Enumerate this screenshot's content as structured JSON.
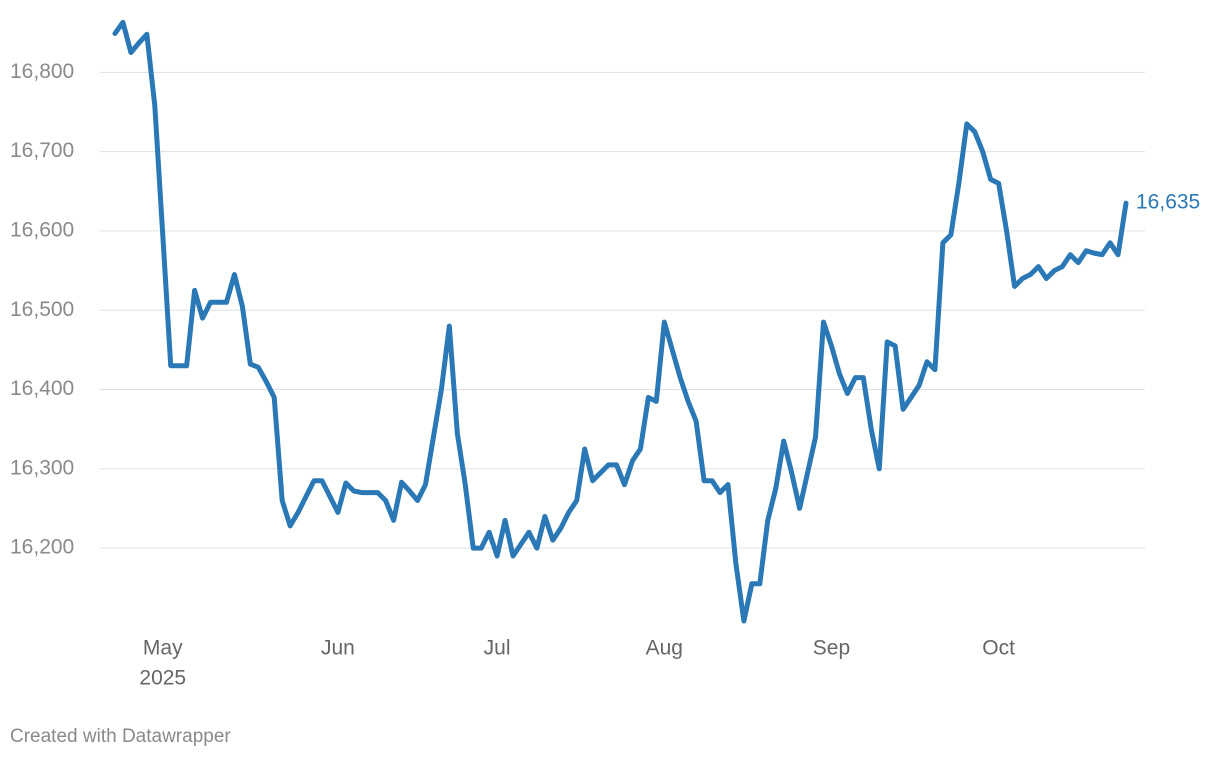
{
  "chart_data": {
    "type": "line",
    "categories": [
      null,
      null,
      null,
      null,
      null,
      null,
      "May",
      null,
      null,
      null,
      null,
      null,
      null,
      null,
      null,
      null,
      null,
      null,
      null,
      null,
      null,
      null,
      null,
      null,
      null,
      null,
      null,
      null,
      "Jun",
      null,
      null,
      null,
      null,
      null,
      null,
      null,
      null,
      null,
      null,
      null,
      null,
      null,
      null,
      null,
      null,
      null,
      null,
      null,
      "Jul",
      null,
      null,
      null,
      null,
      null,
      null,
      null,
      null,
      null,
      null,
      null,
      null,
      null,
      null,
      null,
      null,
      null,
      null,
      null,
      null,
      "Aug",
      null,
      null,
      null,
      null,
      null,
      null,
      null,
      null,
      null,
      null,
      null,
      null,
      null,
      null,
      null,
      null,
      null,
      null,
      null,
      null,
      "Sep",
      null,
      null,
      null,
      null,
      null,
      null,
      null,
      null,
      null,
      null,
      null,
      null,
      null,
      null,
      null,
      null,
      null,
      null,
      null,
      null,
      "Oct",
      null,
      null,
      null,
      null,
      null,
      null,
      null,
      null,
      null,
      null,
      null,
      null,
      null,
      null,
      null,
      null
    ],
    "year_label": "2025",
    "series": [
      {
        "color": "#2a78b5",
        "values": [
          16849,
          16863,
          16825,
          16837,
          16848,
          16758,
          16595,
          16430,
          16430,
          16430,
          16525,
          16490,
          16510,
          16510,
          16510,
          16545,
          16505,
          16432,
          16428,
          16410,
          16390,
          16260,
          16228,
          16245,
          16265,
          16285,
          16285,
          16265,
          16245,
          16282,
          16272,
          16270,
          16270,
          16270,
          16260,
          16235,
          16283,
          16272,
          16260,
          16280,
          16340,
          16400,
          16480,
          16345,
          16280,
          16200,
          16200,
          16220,
          16190,
          16235,
          16190,
          16205,
          16220,
          16200,
          16240,
          16210,
          16225,
          16245,
          16260,
          16325,
          16285,
          16295,
          16305,
          16305,
          16280,
          16310,
          16325,
          16390,
          16385,
          16485,
          16450,
          16415,
          16385,
          16360,
          16285,
          16285,
          16270,
          16280,
          16180,
          16108,
          16155,
          16155,
          16235,
          16275,
          16335,
          16295,
          16250,
          16295,
          16340,
          16485,
          16455,
          16420,
          16395,
          16415,
          16415,
          16350,
          16300,
          16460,
          16455,
          16375,
          16390,
          16405,
          16435,
          16425,
          16585,
          16595,
          16660,
          16735,
          16725,
          16700,
          16665,
          16660,
          16600,
          16530,
          16540,
          16545,
          16555,
          16540,
          16550,
          16555,
          16570,
          16560,
          16575,
          16572,
          16570,
          16585,
          16570,
          16635
        ],
        "value_labels": [
          null,
          null,
          null,
          null,
          null,
          null,
          null,
          null,
          null,
          null,
          null,
          null,
          null,
          null,
          null,
          null,
          null,
          null,
          null,
          null,
          null,
          null,
          null,
          null,
          null,
          null,
          null,
          null,
          null,
          null,
          null,
          null,
          null,
          null,
          null,
          null,
          null,
          null,
          null,
          null,
          null,
          null,
          null,
          null,
          null,
          null,
          null,
          null,
          null,
          null,
          null,
          null,
          null,
          null,
          null,
          null,
          null,
          null,
          null,
          null,
          null,
          null,
          null,
          null,
          null,
          null,
          null,
          null,
          null,
          null,
          null,
          null,
          null,
          null,
          null,
          null,
          null,
          null,
          null,
          null,
          null,
          null,
          null,
          null,
          null,
          null,
          null,
          null,
          null,
          null,
          null,
          null,
          null,
          null,
          null,
          null,
          null,
          null,
          null,
          null,
          null,
          null,
          null,
          null,
          null,
          null,
          null,
          null,
          null,
          null,
          null,
          null,
          null,
          null,
          null,
          null,
          null,
          null,
          null,
          null,
          null,
          null,
          null,
          null,
          null,
          null,
          null,
          "16,635"
        ]
      }
    ],
    "ylim": [
      16103,
      16866
    ],
    "yticks": [
      {
        "value": 16200,
        "label": "16,200"
      },
      {
        "value": 16300,
        "label": "16,300"
      },
      {
        "value": 16400,
        "label": "16,400"
      },
      {
        "value": 16500,
        "label": "16,500"
      },
      {
        "value": 16600,
        "label": "16,600"
      },
      {
        "value": 16700,
        "label": "16,700"
      },
      {
        "value": 16800,
        "label": "16,800"
      }
    ],
    "grid": true,
    "credit": "Created with Datawrapper"
  }
}
